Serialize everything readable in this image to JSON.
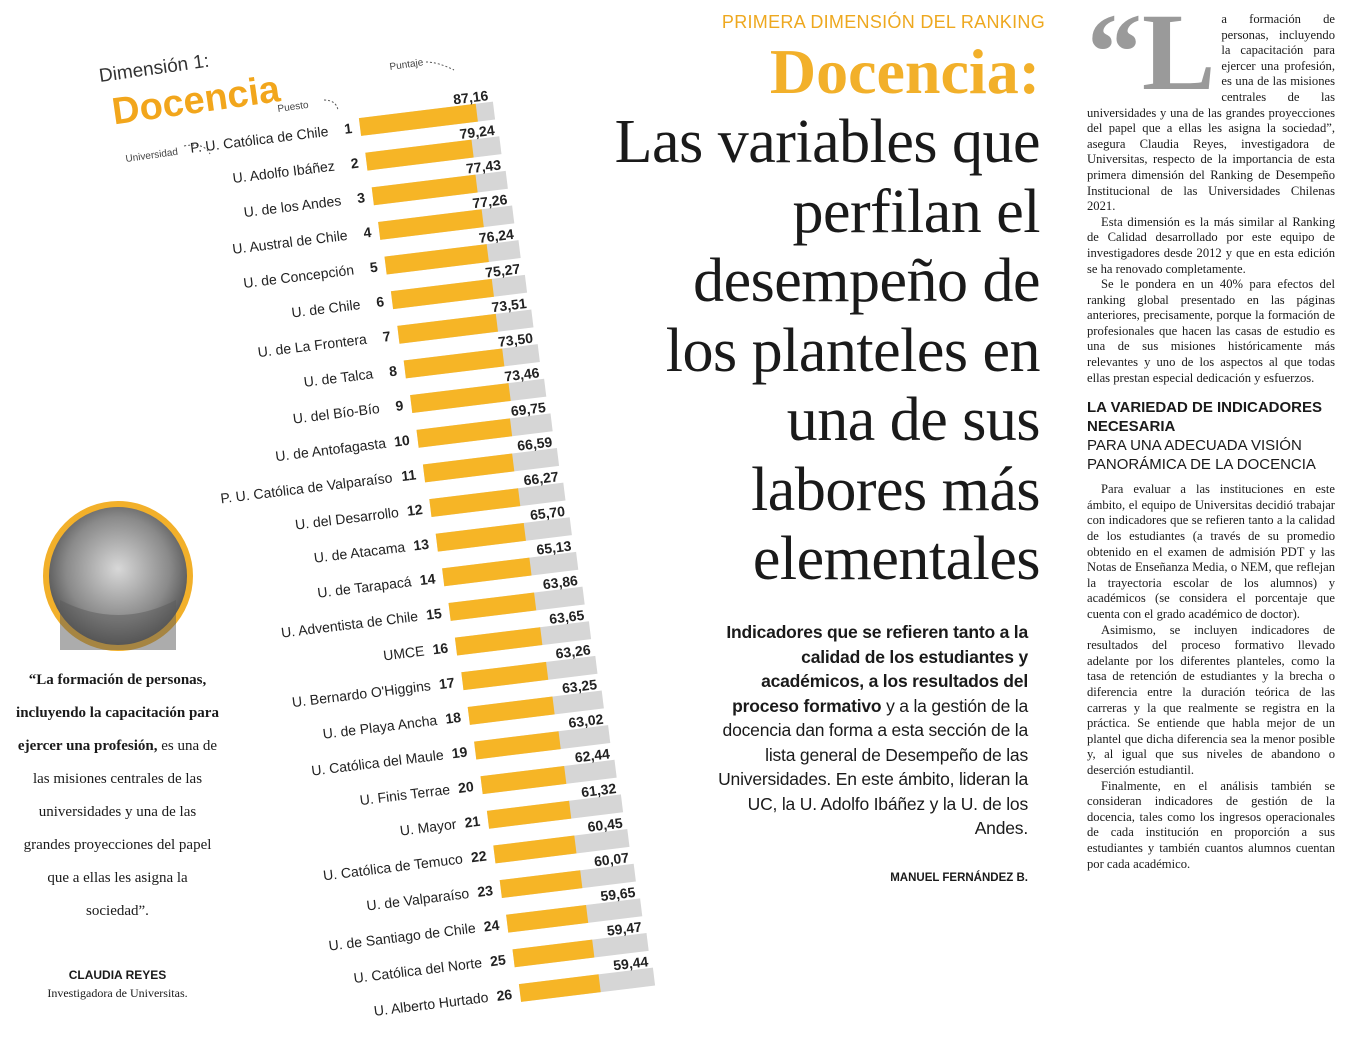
{
  "section_label": "PRIMERA DIMENSIÓN DEL RANKING",
  "headline_lead": "Docencia:",
  "headline": [
    "Las variables que",
    "perfilan el",
    "desempeño de",
    "los planteles en",
    "una de sus",
    "labores más",
    "elementales"
  ],
  "lead": {
    "bold": "Indicadores que se refieren tanto a la calidad de los estudiantes y académicos, a los resultados del proceso formativo",
    "text": "y a la gestión de la docencia dan forma a esta sección de la lista general de Desempeño de las Universidades. En este ámbito, lideran la UC, la U. Adolfo Ibáñez y la U. de los Andes."
  },
  "byline": "MANUEL FERNÁNDEZ B.",
  "quote": {
    "bold": "“La formación de personas, incluyendo la capacitación para ejercer una profesión,",
    "text": "es una de las misiones centrales de las universidades y una de las grandes proyecciones del papel que a ellas les asigna la sociedad”.",
    "name": "CLAUDIA REYES",
    "role": "Investigadora de Universitas."
  },
  "article": {
    "dropcap": "“L",
    "paragraphs": [
      "a formación de personas, incluyendo la capacitación para ejercer una profesión, es una de las misiones centrales de las universidades y una de las grandes proyecciones del papel que a ellas les asigna la sociedad”, asegura Claudia Reyes, investigadora de Universitas, respecto de la importancia de esta primera dimensión del Ranking de Desempeño Institucional de las Universidades Chilenas 2021.",
      "Esta dimensión es la más similar al Ranking de Calidad desarrollado por este equipo de investigadores desde 2012 y que en esta edición se ha renovado completamente.",
      "Se le pondera en un 40% para efectos del ranking global presentado en las páginas anteriores, precisamente, porque la formación de profesionales que hacen las casas de estudio es una de sus misiones históricamente más relevantes y uno de los aspectos al que todas ellas prestan especial dedicación y esfuerzos."
    ],
    "subhead_bold": "LA VARIEDAD DE INDICADORES NECESARIA",
    "subhead": "PARA UNA ADECUADA VISIÓN PANORÁMICA DE LA DOCENCIA",
    "paragraphs2": [
      "Para evaluar a las instituciones en este ámbito, el equipo de Universitas decidió trabajar con indicadores que se refieren tanto a la calidad de los estudiantes (a través de su promedio obtenido en el examen de admisión PDT y las Notas de Enseñanza Media, o NEM, que reflejan la trayectoria escolar de los alumnos) y académicos (se considera el porcentaje que cuenta con el grado académico de doctor).",
      "Asimismo, se incluyen indicadores de resultados del proceso formativo llevado adelante por los diferentes planteles, como la tasa de retención de estudiantes y la brecha o diferencia entre la duración teórica de las carreras y la que realmente se registra en la práctica. Se entiende que habla mejor de un plantel que dicha diferencia sea la menor posible y, al igual que sus niveles de abandono o deserción estudiantil.",
      "Finalmente, en el análisis también se consideran indicadores de gestión de la docencia, tales como los ingresos operacionales de cada institución en proporción a sus estudiantes y también cuantos alumnos cuentan por cada académico."
    ]
  },
  "chart_data": {
    "type": "bar",
    "kicker": "Dimensión 1:",
    "title": "Docencia",
    "axis_labels": {
      "score": "Puntaje",
      "rank": "Puesto",
      "university": "Universidad"
    },
    "categories": [
      "P. U. Católica de Chile",
      "U. Adolfo Ibáñez",
      "U. de los Andes",
      "U. Austral de Chile",
      "U. de Concepción",
      "U. de Chile",
      "U. de La Frontera",
      "U. de Talca",
      "U. del Bío-Bío",
      "U. de Antofagasta",
      "P. U. Católica de Valparaíso",
      "U. del Desarrollo",
      "U. de Atacama",
      "U. de Tarapacá",
      "U. Adventista de Chile",
      "UMCE",
      "U. Bernardo O'Higgins",
      "U. de Playa Ancha",
      "U. Católica del Maule",
      "U. Finis Terrae",
      "U. Mayor",
      "U. Católica de Temuco",
      "U. de Valparaíso",
      "U. de Santiago de Chile",
      "U. Católica del Norte",
      "U. Alberto Hurtado"
    ],
    "ranks": [
      1,
      2,
      3,
      4,
      5,
      6,
      7,
      8,
      9,
      10,
      11,
      12,
      13,
      14,
      15,
      16,
      17,
      18,
      19,
      20,
      21,
      22,
      23,
      24,
      25,
      26
    ],
    "values": [
      87.16,
      79.24,
      77.43,
      77.26,
      76.24,
      75.27,
      73.51,
      73.5,
      73.46,
      69.75,
      66.59,
      66.27,
      65.7,
      65.13,
      63.86,
      63.65,
      63.26,
      63.25,
      63.02,
      62.44,
      61.32,
      60.45,
      60.07,
      59.65,
      59.47,
      59.44
    ],
    "value_labels": [
      "87,16",
      "79,24",
      "77,43",
      "77,26",
      "76,24",
      "75,27",
      "73,51",
      "73,50",
      "73,46",
      "69,75",
      "66,59",
      "66,27",
      "65,70",
      "65,13",
      "63,86",
      "63,65",
      "63,26",
      "63,25",
      "63,02",
      "62,44",
      "61,32",
      "60,45",
      "60,07",
      "59,65",
      "59,47",
      "59,44"
    ],
    "color": "#f6b526",
    "track_color": "#d6d6d6",
    "xlim": [
      0,
      100
    ]
  }
}
